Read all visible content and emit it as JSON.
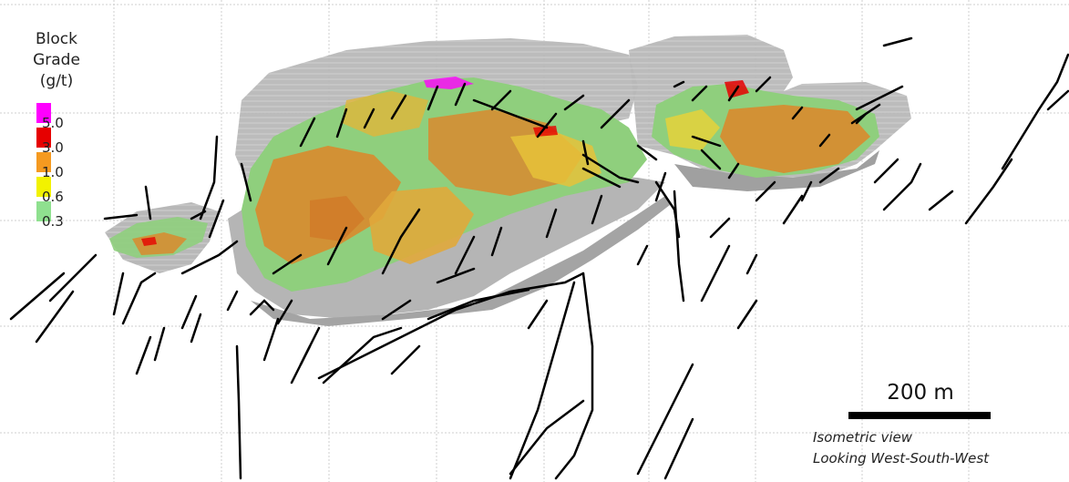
{
  "legend": {
    "title": [
      "Block",
      "Grade",
      "(g/t)"
    ],
    "classes": [
      {
        "label": "5.0",
        "color": "#ff00ff"
      },
      {
        "label": "3.0",
        "color": "#e60000"
      },
      {
        "label": "1.0",
        "color": "#f59a20"
      },
      {
        "label": "0.6",
        "color": "#f2f200"
      },
      {
        "label": "0.3",
        "color": "#8fe08f"
      }
    ]
  },
  "scale_bar": {
    "label": "200 m"
  },
  "caption": {
    "line1": "Isometric view",
    "line2": "Looking West-South-West"
  },
  "colors": {
    "grid": "#c8c8c8",
    "waste_block": "#a9a9a9",
    "waste_block_light": "#c9c9c9",
    "low_grade": "#8fcf7d",
    "mid_grade": "#e0a93b",
    "orange_grade": "#d98a2e",
    "drillhole": "#000000"
  }
}
